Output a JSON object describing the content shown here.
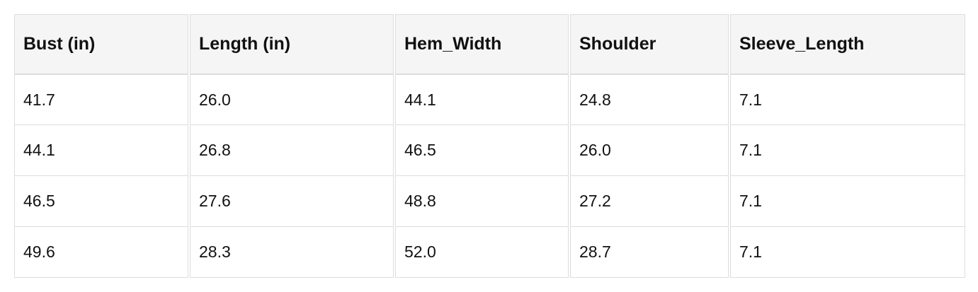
{
  "table": {
    "header": [
      "Bust (in)",
      "Length (in)",
      "Hem_Width",
      "Shoulder",
      "Sleeve_Length"
    ],
    "rows": [
      [
        "41.7",
        "26.0",
        "44.1",
        "24.8",
        "7.1"
      ],
      [
        "44.1",
        "26.8",
        "46.5",
        "26.0",
        "7.1"
      ],
      [
        "46.5",
        "27.6",
        "48.8",
        "27.2",
        "7.1"
      ],
      [
        "49.6",
        "28.3",
        "52.0",
        "28.7",
        "7.1"
      ]
    ]
  }
}
